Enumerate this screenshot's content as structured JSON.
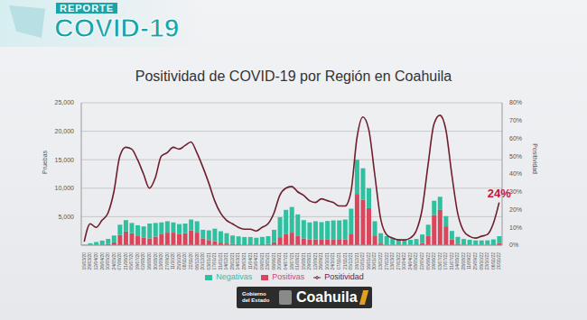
{
  "header": {
    "label": "REPORTE",
    "title": "COVID-19"
  },
  "chart_data": {
    "type": "bar",
    "title": "Positividad de COVID-19 por Región en Coahuila",
    "y_label": "Pruebas",
    "y2_label": "Positividad",
    "categories": [
      "15/03/20",
      "29/03/20",
      "12/04/20",
      "26/04/20",
      "10/05/20",
      "24/05/20",
      "07/06/20",
      "21/06/20",
      "05/07/20",
      "19/07/20",
      "02/08/20",
      "16/08/20",
      "30/08/20",
      "13/09/20",
      "27/09/20",
      "11/10/20",
      "25/10/20",
      "08/11/20",
      "22/11/20",
      "06/12/20",
      "20/12/20",
      "03/01/21",
      "17/01/21",
      "31/01/21",
      "14/02/21",
      "28/02/21",
      "14/03/21",
      "28/03/21",
      "11/04/21",
      "25/04/21",
      "09/05/21",
      "23/05/21",
      "06/06/21",
      "20/06/21",
      "04/07/21",
      "18/07/21",
      "01/08/21",
      "15/08/21",
      "29/08/21",
      "12/09/21",
      "26/09/21",
      "10/10/21",
      "24/10/21",
      "07/11/21",
      "21/11/21",
      "05/12/21",
      "19/12/21",
      "02/01/22",
      "16/01/22",
      "30/01/22",
      "13/02/22",
      "27/02/22",
      "13/03/22",
      "27/03/22",
      "10/04/22",
      "24/04/22",
      "08/05/22",
      "22/05/22",
      "05/06/22",
      "19/06/22",
      "03/07/22",
      "17/07/22",
      "31/07/22",
      "14/08/22",
      "28/08/22",
      "11/09/22",
      "25/09/22",
      "09/10/22",
      "23/10/22",
      "06/11/22",
      "20/11/22"
    ],
    "series": [
      {
        "name": "Positivas",
        "type": "bar",
        "color": "#d9475c",
        "values": [
          0,
          40,
          60,
          110,
          200,
          500,
          1800,
          2400,
          2100,
          1700,
          1300,
          1200,
          1500,
          2000,
          2200,
          2200,
          2000,
          2100,
          2600,
          2200,
          1200,
          900,
          700,
          450,
          300,
          200,
          150,
          130,
          130,
          100,
          150,
          200,
          500,
          1400,
          2000,
          2200,
          1600,
          1200,
          1000,
          1000,
          1050,
          1050,
          1050,
          950,
          1000,
          1900,
          9000,
          8000,
          6500,
          1700,
          300,
          100,
          50,
          30,
          30,
          40,
          90,
          380,
          1600,
          5300,
          6200,
          3300,
          1000,
          260,
          90,
          50,
          35,
          40,
          50,
          120,
          380
        ]
      },
      {
        "name": "Negativas",
        "type": "bar",
        "color": "#2fc0a0",
        "values": [
          50,
          300,
          500,
          700,
          900,
          1200,
          1800,
          2000,
          1800,
          1800,
          2000,
          2600,
          2400,
          2000,
          2000,
          1800,
          1700,
          1700,
          1900,
          2000,
          1500,
          1700,
          2200,
          2000,
          1800,
          1500,
          1400,
          1300,
          1300,
          1200,
          1300,
          1400,
          2200,
          3500,
          4200,
          4500,
          3800,
          3200,
          3000,
          3200,
          3000,
          3200,
          3300,
          3400,
          3500,
          4500,
          6000,
          5500,
          3500,
          2500,
          1800,
          1500,
          1200,
          1000,
          900,
          900,
          1000,
          1500,
          2000,
          2500,
          2300,
          1800,
          1500,
          1200,
          1000,
          900,
          800,
          800,
          800,
          900,
          1200
        ]
      },
      {
        "name": "Positividad",
        "type": "line",
        "axis": "y2",
        "color": "#6e1f2c",
        "values": [
          2,
          12,
          10,
          14,
          18,
          30,
          50,
          55,
          54,
          48,
          40,
          32,
          38,
          50,
          52,
          55,
          54,
          56,
          58,
          52,
          44,
          35,
          25,
          18,
          14,
          12,
          10,
          9,
          9,
          8,
          10,
          12,
          18,
          28,
          32,
          33,
          30,
          28,
          25,
          24,
          26,
          25,
          24,
          22,
          22,
          30,
          60,
          72,
          65,
          40,
          15,
          6,
          4,
          3,
          3,
          4,
          8,
          20,
          45,
          68,
          73,
          65,
          40,
          18,
          8,
          5,
          4,
          5,
          6,
          12,
          24
        ]
      }
    ],
    "ylim": [
      0,
      25000
    ],
    "yticks": [
      0,
      {
        "value": 5000,
        "label": "5,000"
      },
      {
        "value": 10000,
        "label": "10,000"
      },
      {
        "value": 15000,
        "label": "15,000"
      },
      {
        "value": 20000,
        "label": "20,000"
      },
      {
        "value": 25000,
        "label": "25,000"
      }
    ],
    "y2lim": [
      0,
      80
    ],
    "y2ticks": [
      {
        "value": 0,
        "label": "0%"
      },
      {
        "value": 10,
        "label": "10%"
      },
      {
        "value": 20,
        "label": "20%"
      },
      {
        "value": 30,
        "label": "30%"
      },
      {
        "value": 40,
        "label": "40%"
      },
      {
        "value": 50,
        "label": "50%"
      },
      {
        "value": 60,
        "label": "60%"
      },
      {
        "value": 70,
        "label": "70%"
      },
      {
        "value": 80,
        "label": "80%"
      }
    ],
    "stacked": true,
    "grid": true,
    "legend": "bottom",
    "annotations": [
      {
        "text": "24%",
        "color": "#c0143c"
      }
    ]
  },
  "footer": {
    "label": "Gobierno del Estado",
    "brand": "Coahuila"
  }
}
